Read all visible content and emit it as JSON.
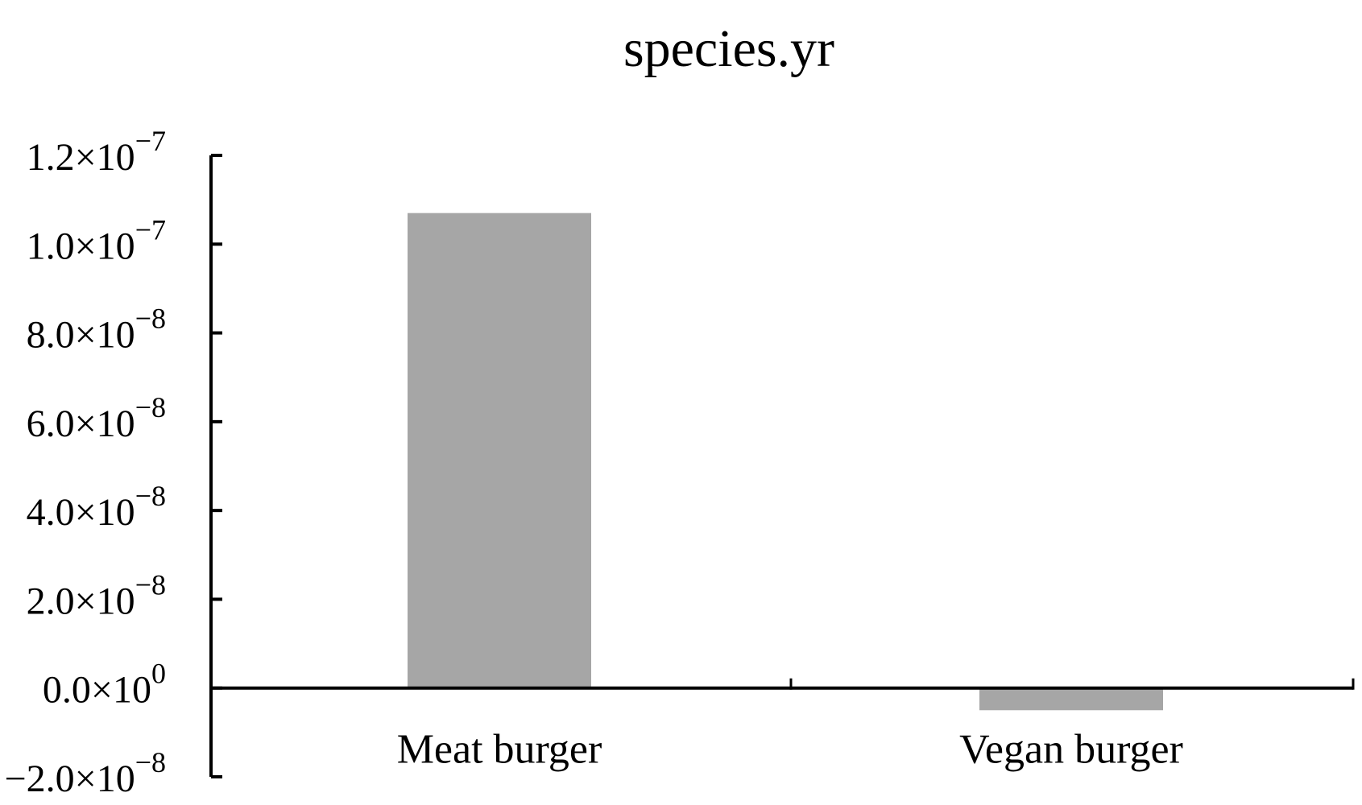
{
  "chart_data": {
    "type": "bar",
    "title": "species.yr",
    "xlabel": "",
    "ylabel": "",
    "categories": [
      "Meat burger",
      "Vegan burger"
    ],
    "values": [
      1.07e-07,
      -5e-09
    ],
    "ylim": [
      -2e-08,
      1.2e-07
    ],
    "yticks": [
      {
        "value": 1.2e-07,
        "mantissa": "1.2",
        "exponent": "-7"
      },
      {
        "value": 1e-07,
        "mantissa": "1.0",
        "exponent": "-7"
      },
      {
        "value": 8e-08,
        "mantissa": "8.0",
        "exponent": "-8"
      },
      {
        "value": 6e-08,
        "mantissa": "6.0",
        "exponent": "-8"
      },
      {
        "value": 4e-08,
        "mantissa": "4.0",
        "exponent": "-8"
      },
      {
        "value": 2e-08,
        "mantissa": "2.0",
        "exponent": "-8"
      },
      {
        "value": 0,
        "mantissa": "0.0",
        "exponent": "0"
      },
      {
        "value": -2e-08,
        "mantissa": "−2.0",
        "exponent": "-8"
      }
    ],
    "tick_times_sign": "×",
    "tick_base": "10",
    "bar_color": "#a6a6a6",
    "axis_color": "#000000",
    "grid": false,
    "legend": "none"
  }
}
